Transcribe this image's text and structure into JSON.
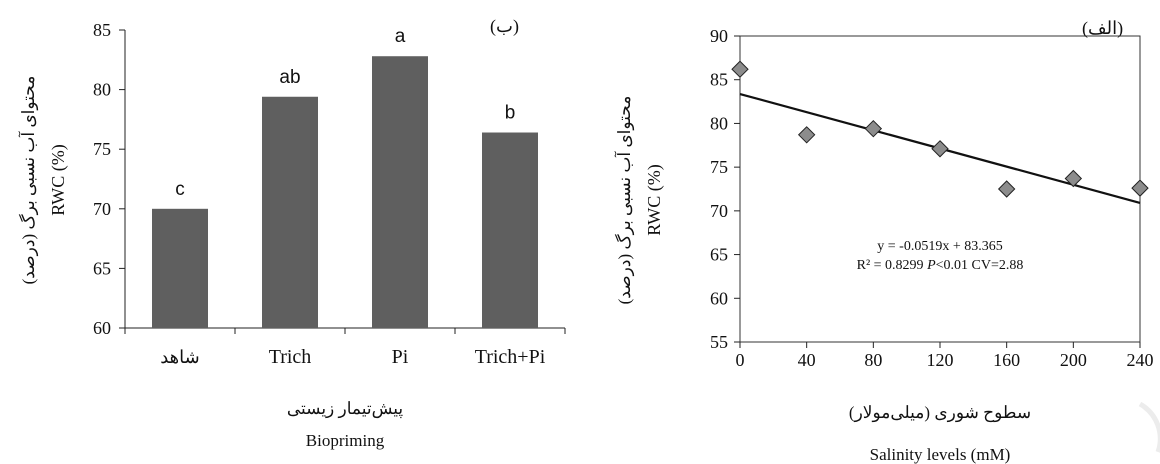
{
  "chart_data": [
    {
      "type": "bar",
      "panel_label": "(ب)",
      "categories": [
        "شاهد",
        "Trich",
        "Pi",
        "Trich+Pi"
      ],
      "values": [
        70.0,
        79.4,
        82.8,
        76.4
      ],
      "letters": [
        "c",
        "ab",
        "a",
        "b"
      ],
      "ylim": [
        60,
        85
      ],
      "yticks": [
        60,
        65,
        70,
        75,
        80,
        85
      ],
      "ylabel_fa": "محتوای آب نسبی برگ (درصد)",
      "ylabel_en": "RWC (%)",
      "xlabel_fa": "پیش‌تیمار زیستی",
      "xlabel_en": "Biopriming",
      "bar_color": "#5f5f5f"
    },
    {
      "type": "scatter",
      "panel_label": "(الف)",
      "x": [
        0,
        40,
        80,
        120,
        160,
        200,
        240
      ],
      "y": [
        86.2,
        78.7,
        79.4,
        77.1,
        72.5,
        73.7,
        72.6
      ],
      "xlim": [
        0,
        240
      ],
      "xticks": [
        0,
        40,
        80,
        120,
        160,
        200,
        240
      ],
      "ylim": [
        55,
        90
      ],
      "yticks": [
        55,
        60,
        65,
        70,
        75,
        80,
        85,
        90
      ],
      "trendline": {
        "slope": -0.0519,
        "intercept": 83.365
      },
      "equation": "y = -0.0519x + 83.365",
      "stats_r2": "R² = 0.8299 ",
      "stats_p_letter": "P",
      "stats_p_rest": "<0.01 CV=2.88",
      "ylabel_fa": "محتوای آب نسبی برگ (درصد)",
      "ylabel_en": "RWC (%)",
      "xlabel_fa": "سطوح شوری (میلی‌مولار)",
      "xlabel_en": "Salinity levels (mM)",
      "marker_color": "#8c8c8c"
    }
  ]
}
